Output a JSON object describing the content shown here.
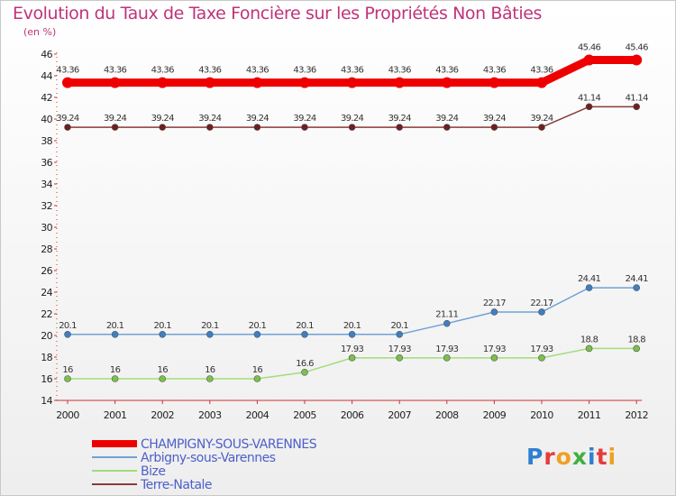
{
  "title": "Evolution du Taux de Taxe Foncière sur les Propriétés Non Bâties",
  "unit_label": "(en %)",
  "logo": {
    "letters": [
      "P",
      "r",
      "o",
      "x",
      "i",
      "t",
      "i"
    ],
    "colors": [
      "#2f7fd1",
      "#e63b3b",
      "#f0a020",
      "#3fb03f",
      "#2f7fd1",
      "#e63b3b",
      "#f0a020"
    ]
  },
  "chart_data": {
    "type": "line",
    "title": "Evolution du Taux de Taxe Foncière sur les Propriétés Non Bâties",
    "ylabel": "(en %)",
    "xlabel": "",
    "ylim": [
      14,
      46
    ],
    "yticks": [
      14,
      16,
      18,
      20,
      22,
      24,
      26,
      28,
      30,
      32,
      34,
      36,
      38,
      40,
      42,
      44,
      46
    ],
    "categories": [
      "2000",
      "2001",
      "2002",
      "2003",
      "2004",
      "2005",
      "2006",
      "2007",
      "2008",
      "2009",
      "2010",
      "2011",
      "2012"
    ],
    "grid": false,
    "legend_position": "bottom-left",
    "series": [
      {
        "name": "CHAMPIGNY-SOUS-VARENNES",
        "color": "#ee0000",
        "point_color": "#ee0000",
        "emphasis": "thick",
        "values": [
          43.36,
          43.36,
          43.36,
          43.36,
          43.36,
          43.36,
          43.36,
          43.36,
          43.36,
          43.36,
          43.36,
          45.46,
          45.46
        ],
        "labels": [
          "43.36",
          "43.36",
          "43.36",
          "43.36",
          "43.36",
          "43.36",
          "43.36",
          "43.36",
          "43.36",
          "43.36",
          "43.36",
          "45.46",
          "45.46"
        ]
      },
      {
        "name": "Arbigny-sous-Varennes",
        "color": "#6fa2d6",
        "point_color": "#3d7fc4",
        "emphasis": "thin",
        "values": [
          20.1,
          20.1,
          20.1,
          20.1,
          20.1,
          20.1,
          20.1,
          20.1,
          21.11,
          22.17,
          22.17,
          24.41,
          24.41
        ],
        "labels": [
          "20.1",
          "20.1",
          "20.1",
          "20.1",
          "20.1",
          "20.1",
          "20.1",
          "20.1",
          "21.11",
          "22.17",
          "22.17",
          "24.41",
          "24.41"
        ]
      },
      {
        "name": "Bize",
        "color": "#a5dc7a",
        "point_color": "#79c24a",
        "emphasis": "thin",
        "values": [
          16,
          16,
          16,
          16,
          16,
          16.6,
          17.93,
          17.93,
          17.93,
          17.93,
          17.93,
          18.8,
          18.8
        ],
        "labels": [
          "16",
          "16",
          "16",
          "16",
          "16",
          "16.6",
          "17.93",
          "17.93",
          "17.93",
          "17.93",
          "17.93",
          "18.8",
          "18.8"
        ]
      },
      {
        "name": "Terre-Natale",
        "color": "#8b3a3a",
        "point_color": "#6e1f1f",
        "emphasis": "thin",
        "values": [
          39.24,
          39.24,
          39.24,
          39.24,
          39.24,
          39.24,
          39.24,
          39.24,
          39.24,
          39.24,
          39.24,
          41.14,
          41.14
        ],
        "labels": [
          "39.24",
          "39.24",
          "39.24",
          "39.24",
          "39.24",
          "39.24",
          "39.24",
          "39.24",
          "39.24",
          "39.24",
          "39.24",
          "41.14",
          "41.14"
        ]
      }
    ]
  }
}
